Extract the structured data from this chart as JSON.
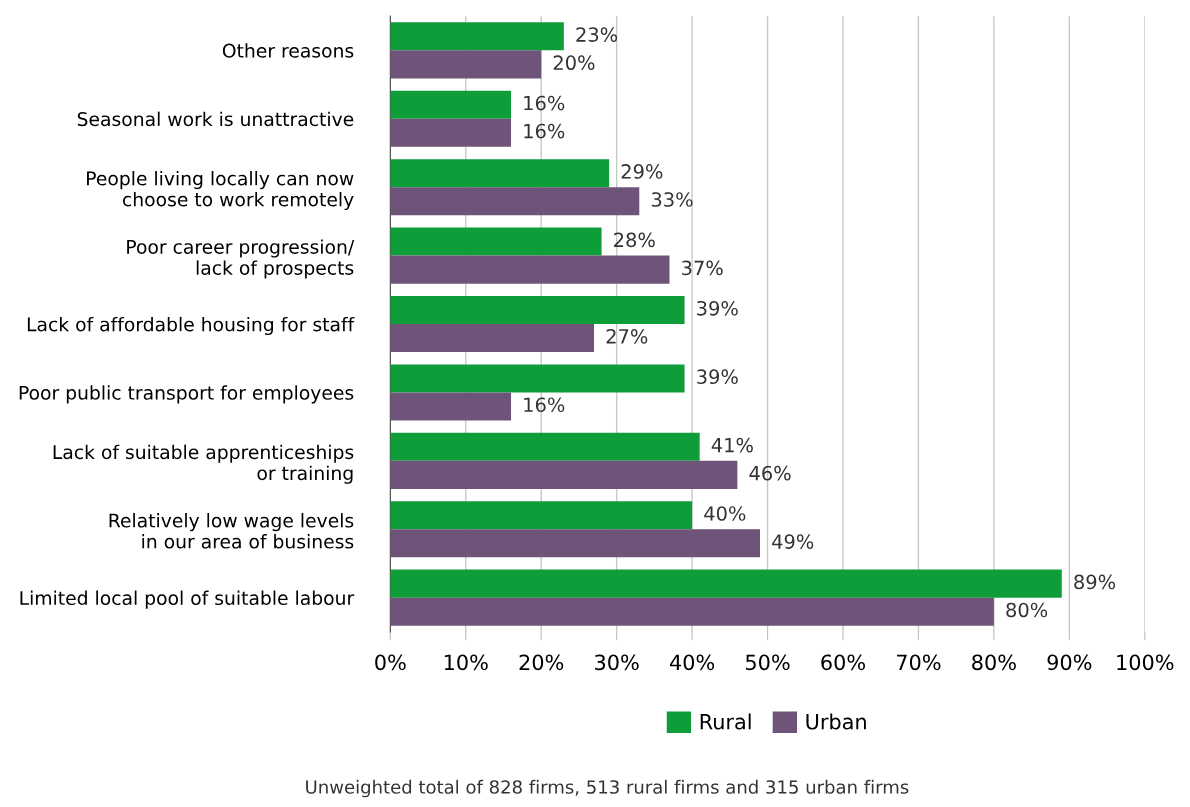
{
  "chart_data": {
    "type": "bar",
    "orientation": "horizontal",
    "categories": [
      "Other reasons",
      "Seasonal work is unattractive",
      "People living locally can now\nchoose to work remotely",
      "Poor career progression/\nlack of prospects",
      "Lack of affordable housing for staff",
      "Poor public transport for employees",
      "Lack of suitable apprenticeships\nor training",
      "Relatively low wage levels\nin our area of business",
      "Limited local pool of suitable labour"
    ],
    "series": [
      {
        "name": "Rural",
        "color": "#0f9d3a",
        "values": [
          23,
          16,
          29,
          28,
          39,
          39,
          41,
          40,
          89
        ],
        "value_labels": [
          "23%",
          "16%",
          "29%",
          "28%",
          "39%",
          "39%",
          "41%",
          "40%",
          "89%"
        ]
      },
      {
        "name": "Urban",
        "color": "#6e5478",
        "values": [
          20,
          16,
          33,
          37,
          27,
          16,
          46,
          49,
          80
        ],
        "value_labels": [
          "20%",
          "16%",
          "33%",
          "37%",
          "27%",
          "16%",
          "46%",
          "49%",
          "80%"
        ]
      }
    ],
    "xlim": [
      0,
      100
    ],
    "xticks": [
      {
        "value": 0,
        "label": "0%"
      },
      {
        "value": 10,
        "label": "10%"
      },
      {
        "value": 20,
        "label": "20%"
      },
      {
        "value": 30,
        "label": "30%"
      },
      {
        "value": 40,
        "label": "40%"
      },
      {
        "value": 50,
        "label": "50%"
      },
      {
        "value": 60,
        "label": "60%"
      },
      {
        "value": 70,
        "label": "70%"
      },
      {
        "value": 80,
        "label": "80%"
      },
      {
        "value": 90,
        "label": "90%"
      },
      {
        "value": 100,
        "label": "100%"
      }
    ],
    "grid": "x",
    "legend": "bottom",
    "annotations": [
      "Unweighted total of 828 firms, 513 rural firms and 315 urban firms"
    ]
  }
}
